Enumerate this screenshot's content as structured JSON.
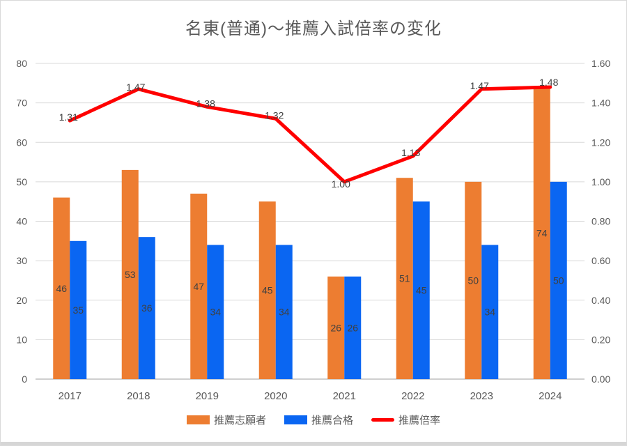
{
  "window": {
    "bg": "#FFFFFF",
    "border_color": "#D9D9D9",
    "bottom_strip_color": "#D6D6D6"
  },
  "chart_data": {
    "type": "combo",
    "title": "名東(普通)～推薦入試倍率の変化",
    "categories": [
      "2017",
      "2018",
      "2019",
      "2020",
      "2021",
      "2022",
      "2023",
      "2024"
    ],
    "series": [
      {
        "name": "推薦志願者",
        "type": "bar",
        "axis": "left",
        "color": "#ED7D31",
        "values": [
          46,
          53,
          47,
          45,
          26,
          51,
          50,
          74
        ],
        "labels": [
          "46",
          "53",
          "47",
          "45",
          "26",
          "51",
          "50",
          "74"
        ]
      },
      {
        "name": "推薦合格",
        "type": "bar",
        "axis": "left",
        "color": "#0A66F2",
        "values": [
          35,
          36,
          34,
          34,
          26,
          45,
          34,
          50
        ],
        "labels": [
          "35",
          "36",
          "34",
          "34",
          "26",
          "45",
          "34",
          "50"
        ]
      },
      {
        "name": "推薦倍率",
        "type": "line",
        "axis": "right",
        "color": "#FF0000",
        "values": [
          1.31,
          1.47,
          1.38,
          1.32,
          1.0,
          1.13,
          1.47,
          1.48
        ],
        "labels": [
          "1.31",
          "1.47",
          "1.38",
          "1.32",
          "1.00",
          "1.13",
          "1.47",
          "1.48"
        ]
      }
    ],
    "axes": {
      "left": {
        "min": 0,
        "max": 80,
        "ticks": [
          "0",
          "10",
          "20",
          "30",
          "40",
          "50",
          "60",
          "70",
          "80"
        ]
      },
      "right": {
        "min": 0,
        "max": 1.6,
        "ticks": [
          "0.00",
          "0.20",
          "0.40",
          "0.60",
          "0.80",
          "1.00",
          "1.20",
          "1.40",
          "1.60"
        ]
      }
    },
    "grid": true,
    "legend_position": "bottom",
    "colors": {
      "grid": "#D9D9D9",
      "axis_line": "#BFBFBF",
      "tick_text": "#595959",
      "title_text": "#595959",
      "data_label": "#404040"
    }
  }
}
